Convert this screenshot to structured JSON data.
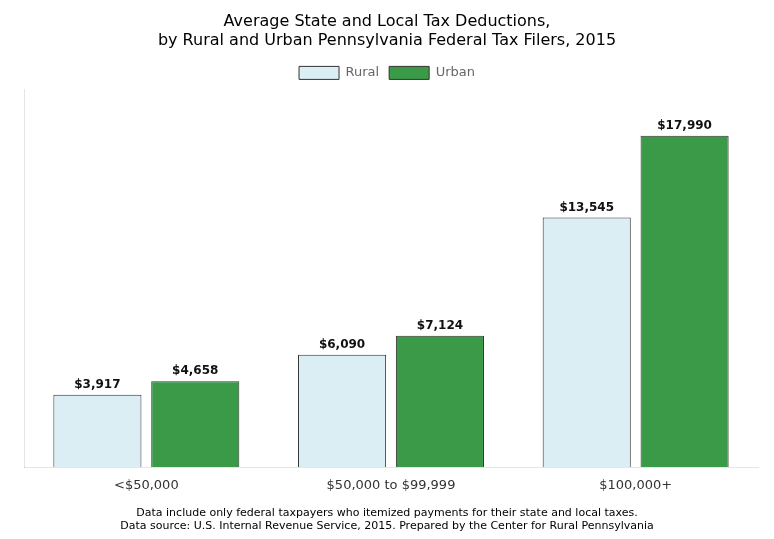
{
  "chart_data": {
    "type": "bar",
    "title": "Average State and Local Tax Deductions,\nby Rural and Urban Pennsylvania Federal Tax Filers, 2015",
    "categories": [
      "<$50,000",
      "$50,000 to $99,999",
      "$100,000+"
    ],
    "series": [
      {
        "name": "Rural",
        "color": "#dbeef4",
        "values": [
          3917,
          6090,
          13545
        ],
        "value_labels": [
          "$3,917",
          "$6,090",
          "$13,545"
        ]
      },
      {
        "name": "Urban",
        "color": "#3a9a47",
        "values": [
          4658,
          7124,
          17990
        ],
        "value_labels": [
          "$4,658",
          "$7,124",
          "$17,990"
        ]
      }
    ],
    "ylim": [
      0,
      20500
    ],
    "tick_labels": "x",
    "grid": false,
    "legend": "top",
    "data_labels": true,
    "annotations": [
      "Data include only federal taxpayers who itemized payments for their state and local taxes.",
      "Data source: U.S. Internal Revenue Service, 2015. Prepared by the Center for Rural Pennsylvania"
    ]
  }
}
